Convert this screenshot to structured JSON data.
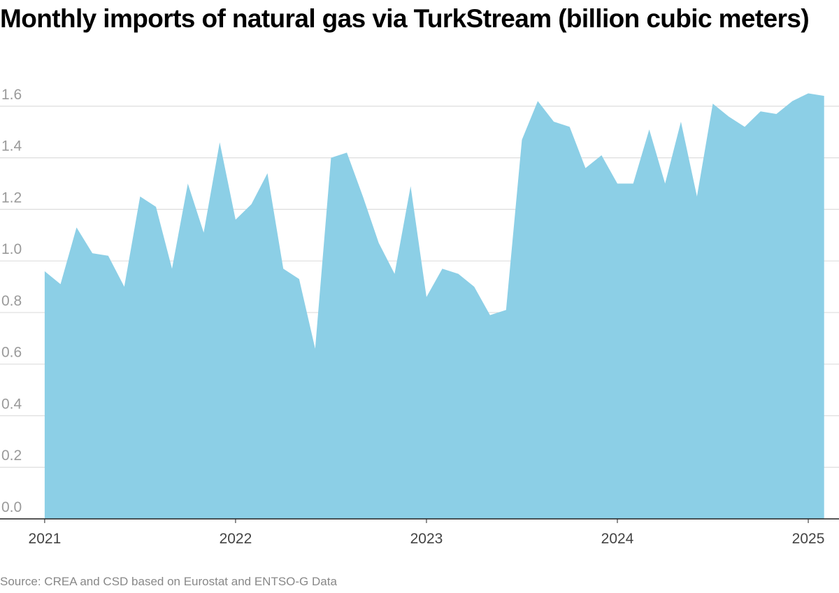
{
  "chart_data": {
    "type": "area",
    "title": "Monthly imports of natural gas via TurkStream (billion cubic meters)",
    "source": "Source: CREA and CSD based on Eurostat and ENTSO-G Data",
    "x": [
      2021,
      2021.083,
      2021.167,
      2021.25,
      2021.333,
      2021.417,
      2021.5,
      2021.583,
      2021.667,
      2021.75,
      2021.833,
      2021.917,
      2022,
      2022.083,
      2022.167,
      2022.25,
      2022.333,
      2022.417,
      2022.5,
      2022.583,
      2022.667,
      2022.75,
      2022.833,
      2022.917,
      2023,
      2023.083,
      2023.167,
      2023.25,
      2023.333,
      2023.417,
      2023.5,
      2023.583,
      2023.667,
      2023.75,
      2023.833,
      2023.917,
      2024,
      2024.083,
      2024.167,
      2024.25,
      2024.333,
      2024.417,
      2024.5,
      2024.583,
      2024.667,
      2024.75,
      2024.833,
      2024.917,
      2025,
      2025.083
    ],
    "values": [
      0.96,
      0.91,
      1.13,
      1.03,
      1.02,
      0.9,
      1.25,
      1.21,
      0.97,
      1.3,
      1.11,
      1.46,
      1.16,
      1.22,
      1.34,
      0.97,
      0.93,
      0.66,
      1.4,
      1.42,
      1.25,
      1.07,
      0.95,
      1.29,
      0.86,
      0.97,
      0.95,
      0.9,
      0.79,
      0.81,
      1.47,
      1.62,
      1.54,
      1.52,
      1.36,
      1.41,
      1.3,
      1.3,
      1.51,
      1.3,
      1.54,
      1.25,
      1.61,
      1.56,
      1.52,
      1.58,
      1.57,
      1.62,
      1.65,
      1.64
    ],
    "color": "#8ccfe6",
    "xlim": [
      2020.766,
      2025.161
    ],
    "xticks": [
      2021,
      2022,
      2023,
      2024,
      2025
    ],
    "ylim": [
      0,
      1.7
    ],
    "yticks": [
      {
        "value": 0,
        "label": "0.0"
      },
      0.2,
      0.4,
      0.6,
      0.8,
      {
        "value": 1,
        "label": "1.0"
      },
      1.2,
      1.4,
      1.6
    ],
    "grid": true
  }
}
